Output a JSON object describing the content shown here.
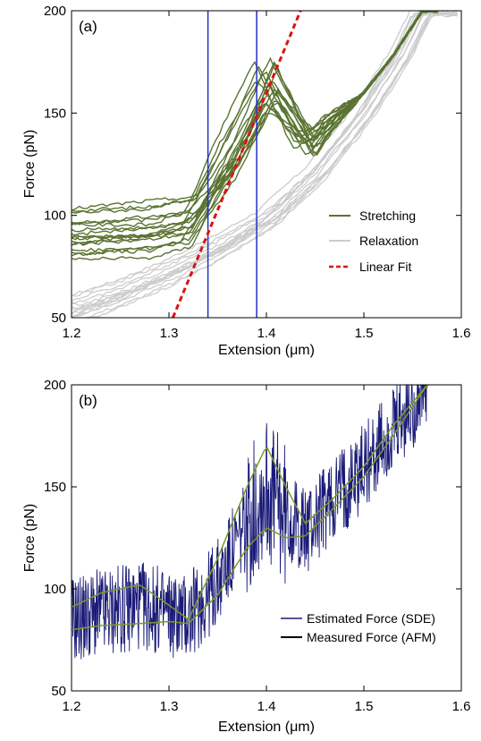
{
  "chart_data": [
    {
      "panel": "(a)",
      "type": "line",
      "xlabel": "Extension (μm)",
      "ylabel": "Force (pN)",
      "xlim": [
        1.2,
        1.6
      ],
      "ylim": [
        50,
        200
      ],
      "xticks": [
        "1.2",
        "1.3",
        "1.4",
        "1.5",
        "1.6"
      ],
      "yticks": [
        "50",
        "100",
        "150",
        "200"
      ],
      "legend_position": "right-center",
      "vertical_lines_x": [
        1.34,
        1.39
      ],
      "colors": {
        "stretching": "#5a7332",
        "relaxation": "#cccccc",
        "fit": "#dd1111",
        "vline": "#2030c0"
      },
      "series": [
        {
          "name": "Stretching",
          "style": "solid",
          "color": "#5a7332",
          "curve_count": 18,
          "x": [
            1.2,
            1.25,
            1.3,
            1.33,
            1.36,
            1.38,
            1.4,
            1.42,
            1.44,
            1.46,
            1.48,
            1.5,
            1.52,
            1.54,
            1.56
          ],
          "y": [
            84,
            84,
            86,
            92,
            118,
            150,
            165,
            140,
            132,
            140,
            152,
            165,
            178,
            190,
            200
          ]
        },
        {
          "name": "Relaxation",
          "style": "solid",
          "color": "#cccccc",
          "curve_count": 14,
          "x": [
            1.2,
            1.25,
            1.3,
            1.35,
            1.4,
            1.45,
            1.5,
            1.52,
            1.54,
            1.56
          ],
          "y": [
            54,
            62,
            72,
            84,
            98,
            120,
            150,
            165,
            180,
            200
          ]
        },
        {
          "name": "Linear Fit",
          "style": "dashed",
          "color": "#dd1111",
          "x": [
            1.304,
            1.435
          ],
          "y": [
            50,
            200
          ]
        }
      ]
    },
    {
      "panel": "(b)",
      "type": "line",
      "xlabel": "Extension (μm)",
      "ylabel": "Force (pN)",
      "xlim": [
        1.2,
        1.6
      ],
      "ylim": [
        50,
        200
      ],
      "xticks": [
        "1.2",
        "1.3",
        "1.4",
        "1.5",
        "1.6"
      ],
      "yticks": [
        "50",
        "100",
        "150",
        "200"
      ],
      "legend_position": "bottom-right",
      "colors": {
        "sde": "#1a1a78",
        "afm": "#000000",
        "envelope": "#7a9a2a"
      },
      "series": [
        {
          "name": "Estimated Force (SDE)",
          "color": "#1a1a78",
          "x": [
            1.2,
            1.25,
            1.27,
            1.3,
            1.32,
            1.35,
            1.38,
            1.4,
            1.42,
            1.44,
            1.46,
            1.5,
            1.54,
            1.565
          ],
          "y": [
            85,
            90,
            92,
            88,
            86,
            103,
            132,
            150,
            135,
            128,
            140,
            160,
            182,
            200
          ]
        },
        {
          "name": "Measured Force (AFM)",
          "color": "#000000",
          "x": [
            1.2,
            1.25,
            1.27,
            1.3,
            1.32,
            1.35,
            1.38,
            1.4,
            1.42,
            1.44,
            1.46,
            1.5,
            1.54,
            1.565
          ],
          "y": [
            85,
            90,
            92,
            88,
            86,
            103,
            132,
            150,
            135,
            128,
            140,
            160,
            182,
            200
          ]
        },
        {
          "name": "",
          "role": "upper envelope",
          "x": [
            1.2,
            1.23,
            1.27,
            1.3,
            1.32,
            1.35,
            1.38,
            1.4,
            1.42,
            1.44,
            1.47,
            1.5,
            1.53,
            1.565
          ],
          "y": [
            91,
            98,
            102,
            92,
            85,
            115,
            150,
            170,
            150,
            132,
            145,
            160,
            180,
            200
          ]
        },
        {
          "name": "",
          "role": "lower envelope",
          "x": [
            1.2,
            1.23,
            1.27,
            1.3,
            1.32,
            1.35,
            1.38,
            1.4,
            1.42,
            1.44,
            1.47,
            1.5,
            1.53,
            1.565
          ],
          "y": [
            80,
            82,
            83,
            84,
            83,
            97,
            120,
            130,
            125,
            126,
            140,
            155,
            175,
            200
          ]
        }
      ]
    }
  ]
}
